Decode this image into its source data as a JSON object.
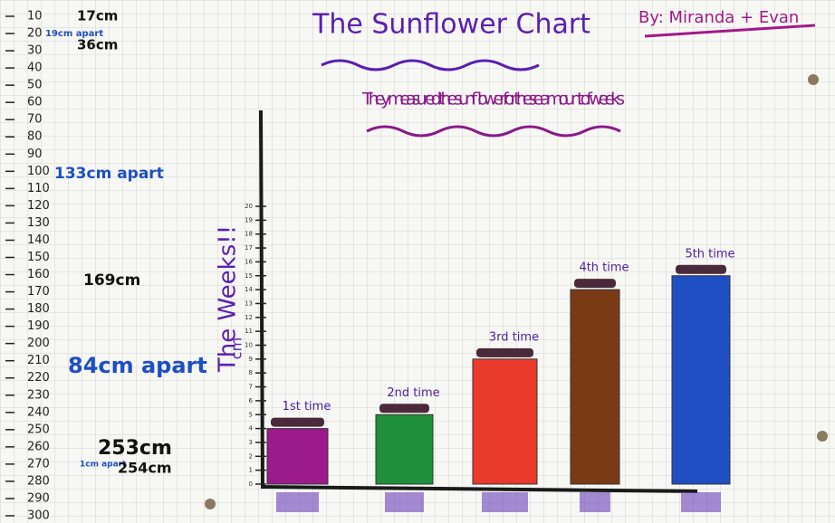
{
  "chart_data": {
    "type": "bar",
    "title": "The Sunflower Chart",
    "subtitle": "They measured the sunflower for these amount of weeks",
    "author": "By: Miranda + Evan",
    "y_label": "The Weeks!!",
    "y_unit": "cm",
    "categories": [
      "1st time",
      "2nd time",
      "3rd time",
      "4th time",
      "5th time"
    ],
    "values": [
      4,
      5,
      9,
      14,
      15
    ],
    "colors": [
      "#9b1a8c",
      "#1f8f3c",
      "#ea3a2e",
      "#7b3a16",
      "#1d4fc2"
    ],
    "ylim": [
      0,
      20
    ],
    "yticks": [
      0,
      1,
      2,
      3,
      4,
      5,
      6,
      7,
      8,
      9,
      10,
      11,
      12,
      13,
      14,
      15,
      16,
      17,
      18,
      19,
      20
    ],
    "ruler": [
      10,
      20,
      30,
      40,
      50,
      60,
      70,
      80,
      90,
      100,
      110,
      120,
      130,
      140,
      150,
      160,
      170,
      180,
      190,
      200,
      210,
      220,
      230,
      240,
      250,
      260,
      270,
      280,
      290,
      300
    ],
    "annotations": [
      "17cm",
      "19cm apart",
      "36cm",
      "133cm apart",
      "169cm",
      "84cm apart",
      "253cm",
      "1cm apart",
      "254cm"
    ]
  }
}
